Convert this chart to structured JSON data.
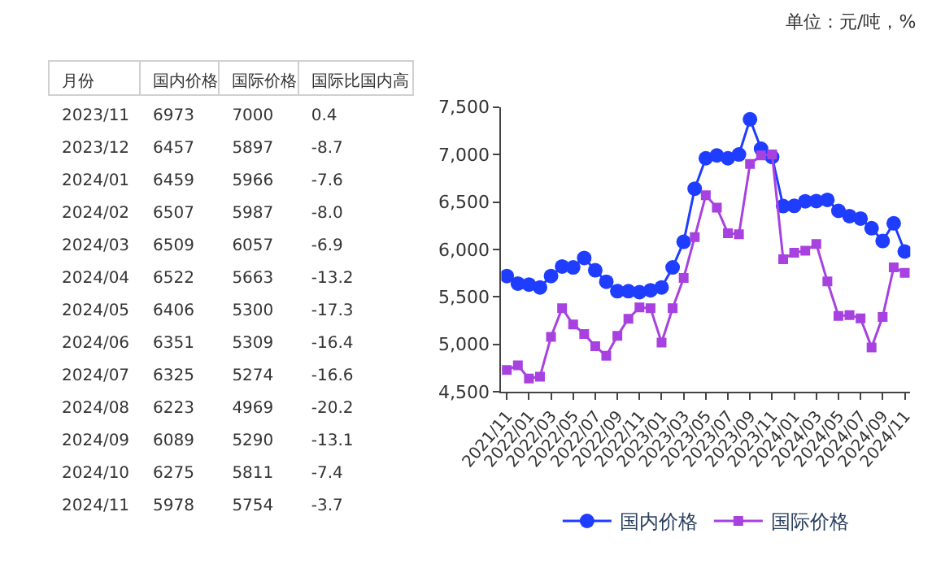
{
  "chart_data": [
    {
      "type": "other",
      "xlabel": "月份",
      "annotations": [
        "单位：元/吨，%"
      ],
      "categories": [
        "2023/11",
        "2023/12",
        "2024/01",
        "2024/02",
        "2024/03",
        "2024/04",
        "2024/05",
        "2024/06",
        "2024/07",
        "2024/08",
        "2024/09",
        "2024/10",
        "2024/11"
      ],
      "data_labels": true,
      "series": [
        {
          "name": "国内价格",
          "values": [
            6973,
            6457,
            6459,
            6507,
            6509,
            6522,
            6406,
            6351,
            6325,
            6223,
            6089,
            6275,
            5978
          ],
          "value_labels": [
            "6973",
            "6457",
            "6459",
            "6507",
            "6509",
            "6522",
            "6406",
            "6351",
            "6325",
            "6223",
            "6089",
            "6275",
            "5978"
          ]
        },
        {
          "name": "国际价格",
          "values": [
            7000,
            5897,
            5966,
            5987,
            6057,
            5663,
            5300,
            5309,
            5274,
            4969,
            5290,
            5811,
            5754
          ],
          "value_labels": [
            "7000",
            "5897",
            "5966",
            "5987",
            "6057",
            "5663",
            "5300",
            "5309",
            "5274",
            "4969",
            "5290",
            "5811",
            "5754"
          ]
        },
        {
          "name": "国际比国内高",
          "values": [
            0.4,
            -8.7,
            -7.6,
            -8.0,
            -6.9,
            -13.2,
            -17.3,
            -16.4,
            -16.6,
            -20.2,
            -13.1,
            -7.4,
            -3.7
          ],
          "value_labels": [
            "0.4",
            "-8.7",
            "-7.6",
            "-8.0",
            "-6.9",
            "-13.2",
            "-17.3",
            "-16.4",
            "-16.6",
            "-20.2",
            "-13.1",
            "-7.4",
            "-3.7"
          ]
        }
      ]
    },
    {
      "type": "line",
      "categories": [
        "2021/11",
        null,
        "2022/01",
        null,
        "2022/03",
        null,
        "2022/05",
        null,
        "2022/07",
        null,
        "2022/09",
        null,
        "2022/11",
        null,
        "2023/01",
        null,
        "2023/03",
        null,
        "2023/05",
        null,
        "2023/07",
        null,
        "2023/09",
        null,
        "2023/11",
        null,
        "2024/01",
        null,
        "2024/03",
        null,
        "2024/05",
        null,
        "2024/07",
        null,
        "2024/09",
        null,
        "2024/11"
      ],
      "ylim": [
        4500,
        7500
      ],
      "yticks": [
        {
          "value": 4500,
          "label": "4,500"
        },
        {
          "value": 5000,
          "label": "5,000"
        },
        {
          "value": 5500,
          "label": "5,500"
        },
        {
          "value": 6000,
          "label": "6,000"
        },
        {
          "value": 6500,
          "label": "6,500"
        },
        {
          "value": 7000,
          "label": "7,000"
        },
        {
          "value": 7500,
          "label": "7,500"
        }
      ],
      "legend": "bottom",
      "line_style": "solid",
      "series": [
        {
          "name": "国内价格",
          "color": "#1f3dff",
          "marker": "circle",
          "values": [
            5720,
            5640,
            5630,
            5600,
            5720,
            5820,
            5810,
            5910,
            5780,
            5660,
            5560,
            5560,
            5550,
            5570,
            5600,
            5810,
            6080,
            6640,
            6960,
            6990,
            6960,
            7000,
            7370,
            7060,
            6973,
            6457,
            6459,
            6507,
            6509,
            6522,
            6406,
            6351,
            6325,
            6223,
            6089,
            6275,
            5978
          ]
        },
        {
          "name": "国际价格",
          "color": "#a742e0",
          "marker": "square",
          "values": [
            4730,
            4780,
            4640,
            4660,
            5080,
            5380,
            5210,
            5110,
            4980,
            4880,
            5090,
            5270,
            5390,
            5380,
            5020,
            5380,
            5700,
            6130,
            6570,
            6440,
            6170,
            6160,
            6900,
            6990,
            7000,
            5897,
            5966,
            5987,
            6057,
            5663,
            5300,
            5309,
            5274,
            4969,
            5290,
            5811,
            5754
          ]
        }
      ]
    }
  ]
}
